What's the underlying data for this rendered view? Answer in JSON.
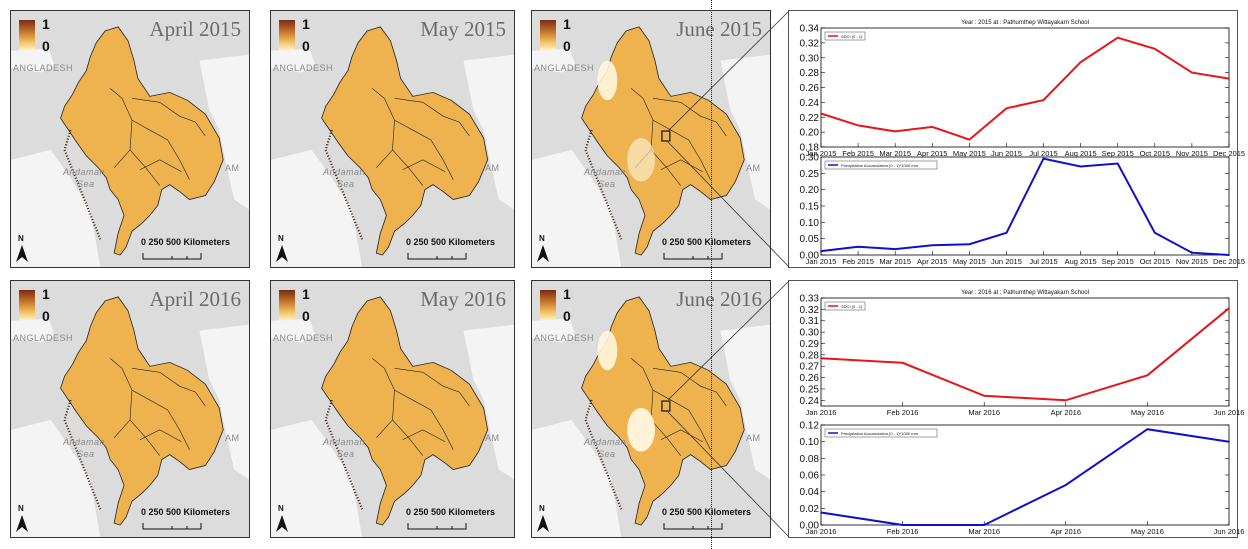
{
  "maps": {
    "legend_max": "1",
    "legend_min": "0",
    "scale_label": "0   250  500 Kilometers",
    "north_label": "N",
    "labels": {
      "bangladesh": "ANGLADESH",
      "andaman": "Andaman",
      "sea": "Sea",
      "vietnam": "AM"
    },
    "panels": [
      {
        "title": "April 2015"
      },
      {
        "title": "May 2015"
      },
      {
        "title": "June 2015"
      },
      {
        "title": "April 2016"
      },
      {
        "title": "May 2016"
      },
      {
        "title": "June 2016"
      }
    ]
  },
  "colors": {
    "sdci": "#e8141b",
    "precip": "#1010c8",
    "map_fill": "#eeb24e",
    "land_bg": "#dcdcdc"
  },
  "chart_data": [
    {
      "type": "line",
      "title": "Year : 2015 at : Pathumthep Wittayakarn School",
      "categories": [
        "Jan 2015",
        "Feb 2015",
        "Mar 2015",
        "Apr 2015",
        "May 2015",
        "Jun 2015",
        "Jul 2015",
        "Aug 2015",
        "Sep 2015",
        "Oct 2015",
        "Nov 2015",
        "Dec 2015"
      ],
      "series": [
        {
          "name": "SDCI (0 - 1)",
          "values": [
            0.225,
            0.209,
            0.201,
            0.207,
            0.19,
            0.232,
            0.243,
            0.294,
            0.327,
            0.312,
            0.28,
            0.272
          ]
        }
      ],
      "ylim": [
        0.18,
        0.34
      ],
      "yticks": [
        "0.18",
        "0.20",
        "0.22",
        "0.24",
        "0.26",
        "0.28",
        "0.30",
        "0.32",
        "0.34"
      ],
      "legend_position": "top-left"
    },
    {
      "type": "line",
      "title": "",
      "categories": [
        "Jan 2015",
        "Feb 2015",
        "Mar 2015",
        "Apr 2015",
        "May 2015",
        "Jun 2015",
        "Jul 2015",
        "Aug 2015",
        "Sep 2015",
        "Oct 2015",
        "Nov 2015",
        "Dec 2015"
      ],
      "series": [
        {
          "name": "Precipitation Accumulation (0 - 1)*1000 mm",
          "values": [
            0.012,
            0.025,
            0.018,
            0.03,
            0.033,
            0.068,
            0.295,
            0.271,
            0.28,
            0.068,
            0.007,
            0.0
          ]
        }
      ],
      "ylim": [
        0.0,
        0.3
      ],
      "yticks": [
        "0.00",
        "0.05",
        "0.10",
        "0.15",
        "0.20",
        "0.25",
        "0.30"
      ],
      "legend_position": "top-left"
    },
    {
      "type": "line",
      "title": "Year : 2016 at : Pathumthep Wittayakarn School",
      "categories": [
        "Jan 2016",
        "Feb 2016",
        "Mar 2016",
        "Apr 2016",
        "May 2016",
        "Jun 2016"
      ],
      "series": [
        {
          "name": "SDCI (0 - 1)",
          "values": [
            0.277,
            0.273,
            0.244,
            0.24,
            0.262,
            0.321
          ]
        }
      ],
      "ylim": [
        0.235,
        0.33
      ],
      "yticks": [
        "0.24",
        "0.25",
        "0.26",
        "0.27",
        "0.28",
        "0.29",
        "0.30",
        "0.31",
        "0.32",
        "0.33"
      ],
      "legend_position": "top-left"
    },
    {
      "type": "line",
      "title": "",
      "categories": [
        "Jan 2016",
        "Feb 2016",
        "Mar 2016",
        "Apr 2016",
        "May 2016",
        "Jun 2016"
      ],
      "series": [
        {
          "name": "Precipitation Accumulation (0 - 1)*1000 mm",
          "values": [
            0.015,
            0.0,
            0.0,
            0.048,
            0.115,
            0.1
          ]
        }
      ],
      "ylim": [
        0.0,
        0.12
      ],
      "yticks": [
        "0.00",
        "0.02",
        "0.04",
        "0.06",
        "0.08",
        "0.10",
        "0.12"
      ],
      "legend_position": "top-left"
    }
  ]
}
